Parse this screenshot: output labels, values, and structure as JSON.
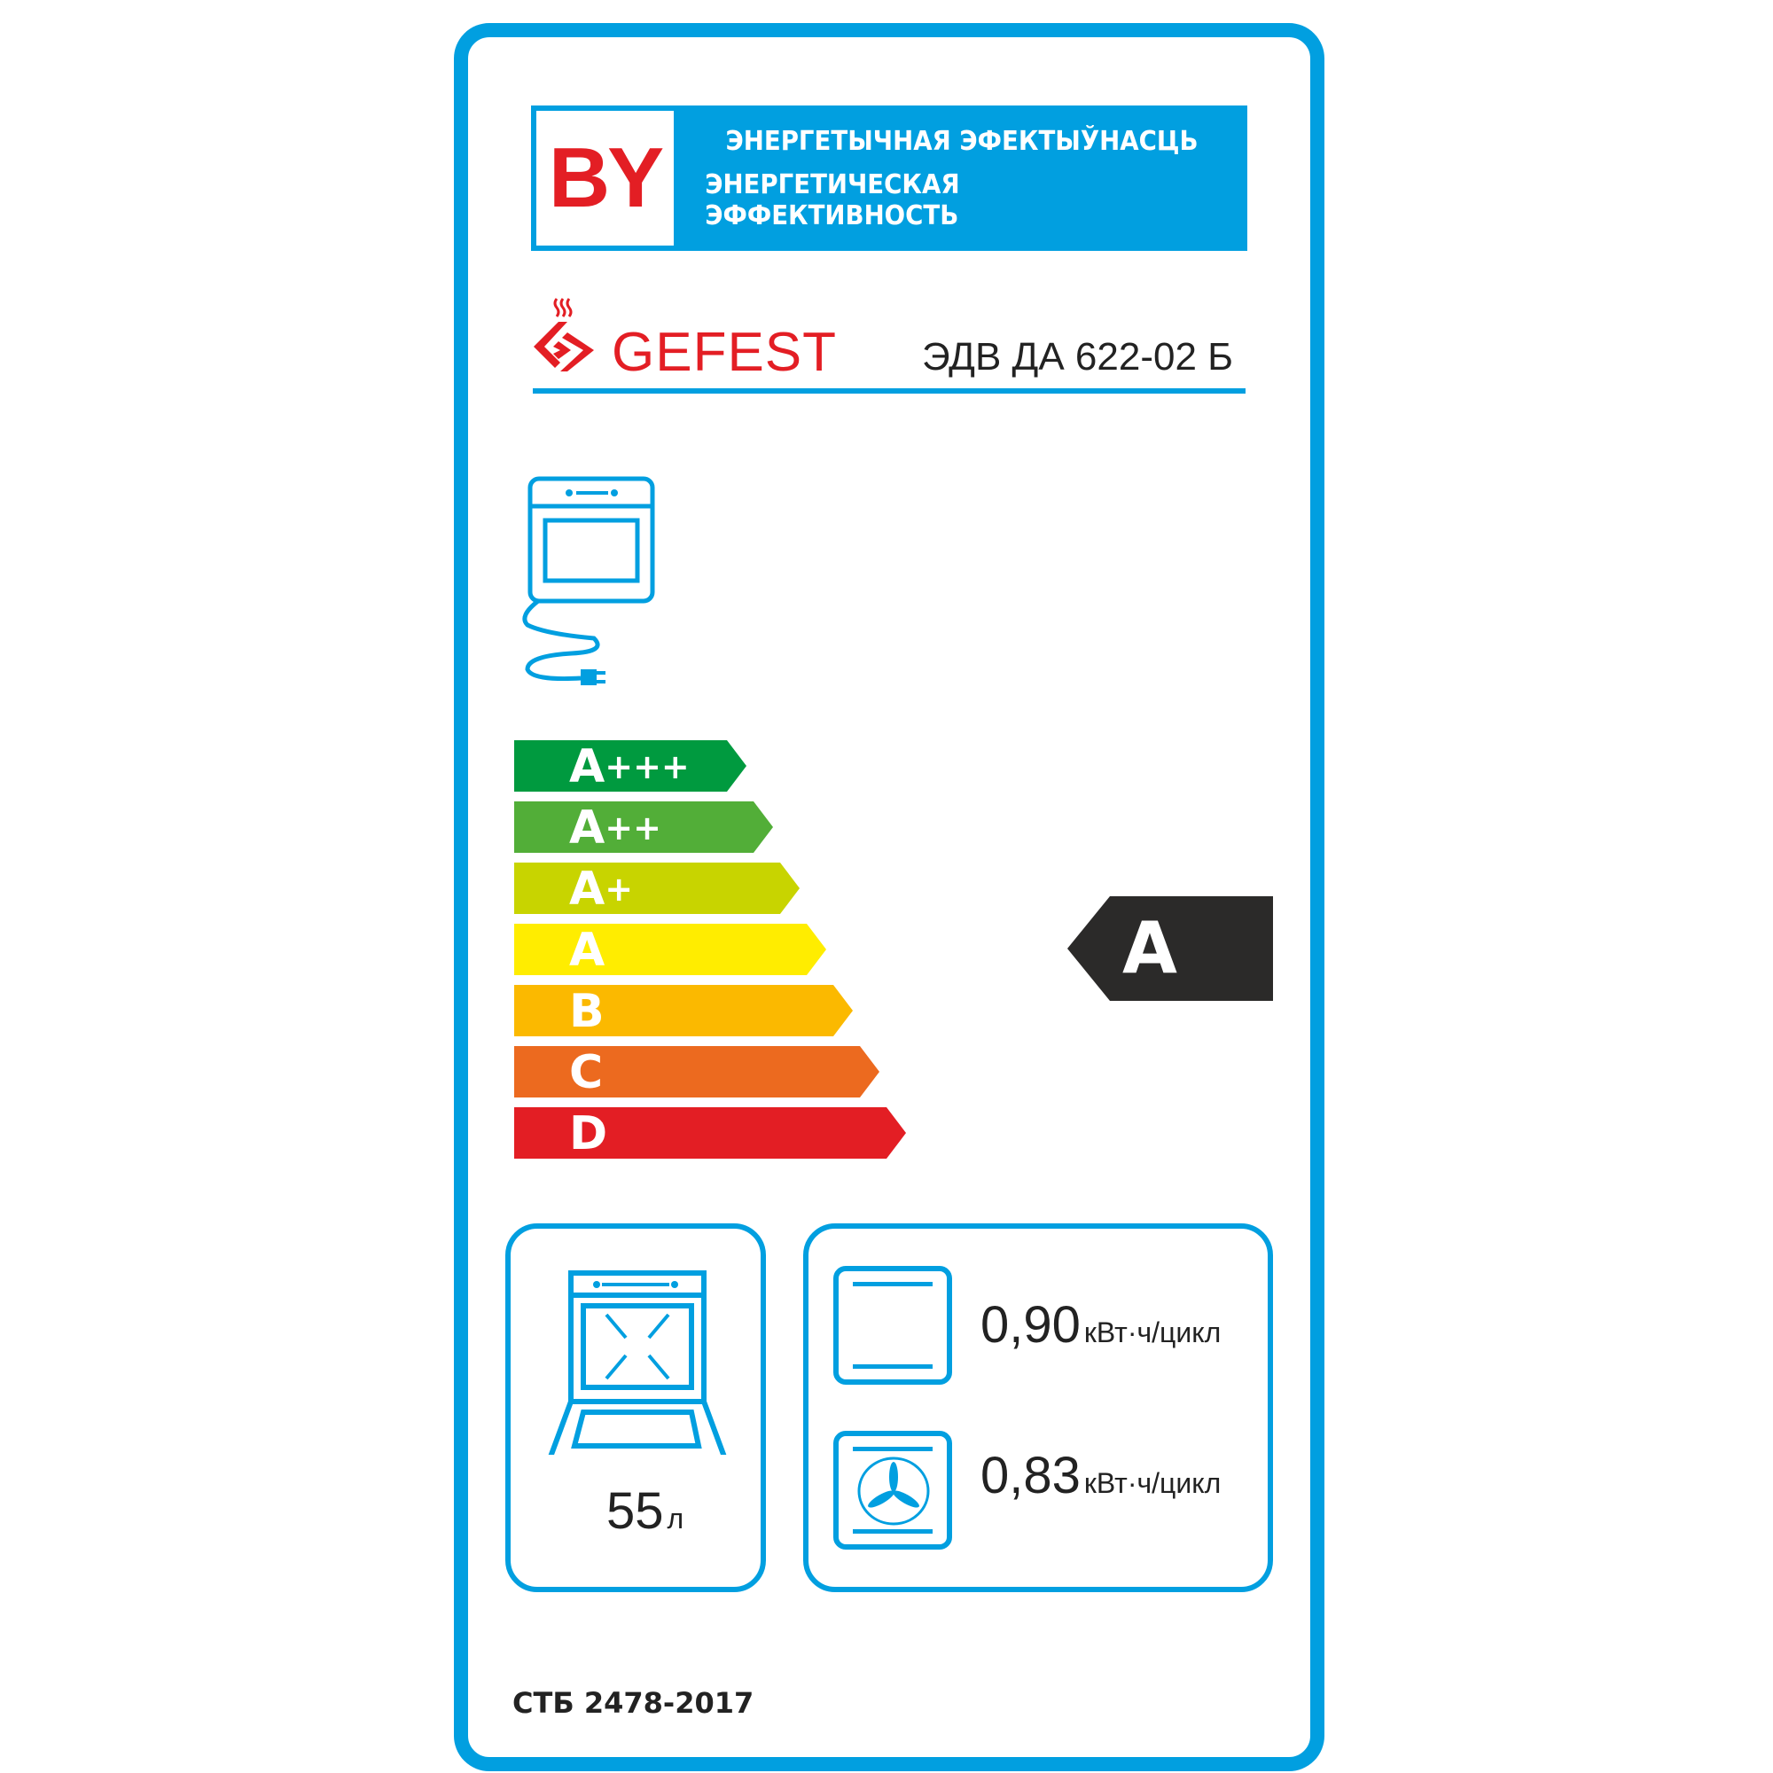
{
  "header": {
    "country_code": "BY",
    "title_be": "ЭНЕРГЕТЫЧНАЯ ЭФЕКТЫЎНАСЦЬ",
    "title_ru": "ЭНЕРГЕТИЧЕСКАЯ ЭФФЕКТИВНОСТЬ"
  },
  "brand": "GEFEST",
  "model": "ЭДВ ДА 622-02 Б",
  "scale": [
    {
      "label": "A",
      "plus": "+++",
      "color": "#009a3f"
    },
    {
      "label": "A",
      "plus": "++",
      "color": "#52ae38"
    },
    {
      "label": "A",
      "plus": "+",
      "color": "#c8d400"
    },
    {
      "label": "A",
      "plus": "",
      "color": "#ffed00"
    },
    {
      "label": "B",
      "plus": "",
      "color": "#fbb900"
    },
    {
      "label": "C",
      "plus": "",
      "color": "#ec6a1f"
    },
    {
      "label": "D",
      "plus": "",
      "color": "#e31e24"
    }
  ],
  "rating": "A",
  "volume": {
    "value": "55",
    "unit": "л"
  },
  "consumption": [
    {
      "mode": "conventional",
      "value": "0,90",
      "unit": "кВт·ч/цикл"
    },
    {
      "mode": "fan-forced",
      "value": "0,83",
      "unit": "кВт·ч/цикл"
    }
  ],
  "standard": "СТБ 2478-2017",
  "colors": {
    "accent": "#019fe0",
    "brand": "#e31e24",
    "indicator": "#2b2a29"
  }
}
